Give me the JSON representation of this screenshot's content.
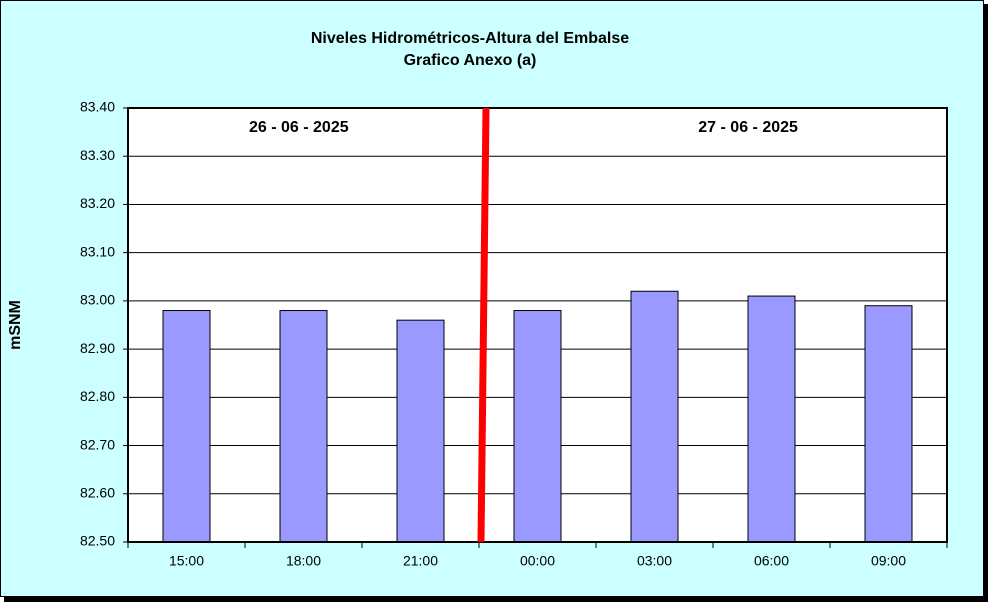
{
  "chart_data": {
    "type": "bar",
    "title": "Niveles Hidrométricos-Altura del Embalse",
    "subtitle": "Grafico Anexo (a)",
    "y_label": "mSNM",
    "annotations": [
      "26 - 06 - 2025",
      "27 - 06 - 2025"
    ],
    "categories": [
      "15:00",
      "18:00",
      "21:00",
      "00:00",
      "03:00",
      "06:00",
      "09:00"
    ],
    "values": [
      82.98,
      82.98,
      82.96,
      82.98,
      83.02,
      83.01,
      82.99
    ],
    "color": "#9999ff",
    "ylim": [
      82.5,
      83.4
    ],
    "yticks": [
      {
        "value": 82.5,
        "label": "82.50"
      },
      {
        "value": 82.6,
        "label": "82.60"
      },
      {
        "value": 82.7,
        "label": "82.70"
      },
      {
        "value": 82.8,
        "label": "82.80"
      },
      {
        "value": 82.9,
        "label": "82.90"
      },
      {
        "value": 83.0,
        "label": "83.00"
      },
      {
        "value": 83.1,
        "label": "83.10"
      },
      {
        "value": 83.2,
        "label": "83.20"
      },
      {
        "value": 83.3,
        "label": "83.30"
      },
      {
        "value": 83.4,
        "label": "83.40"
      }
    ],
    "grid": true
  }
}
